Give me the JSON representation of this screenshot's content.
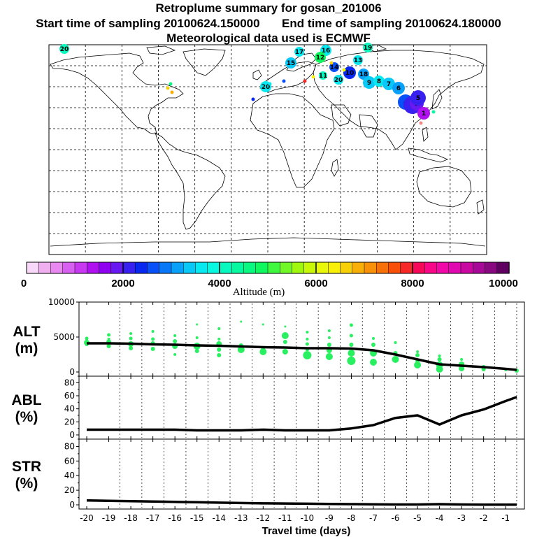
{
  "title": {
    "line1": "Retroplume summary for gosan_201006",
    "line2_start": "Start time of sampling 20100624.150000",
    "line2_end": "End time of sampling 20100624.180000",
    "line3": "Meteorological data used is ECMWF"
  },
  "colorbar": {
    "label": "Altitude (m)",
    "ticks": [
      "0",
      "2000",
      "4000",
      "6000",
      "8000",
      "10000"
    ],
    "colors": [
      "#f8d8f8",
      "#f0b0f0",
      "#e888f0",
      "#d860f0",
      "#c838f0",
      "#b010f0",
      "#9000f0",
      "#6818f0",
      "#3820f0",
      "#0828f0",
      "#0850f8",
      "#0878f8",
      "#08a0f8",
      "#08c8f8",
      "#08e8f0",
      "#08f8e0",
      "#08f8c0",
      "#08f8a0",
      "#08f880",
      "#10f860",
      "#40f840",
      "#70f828",
      "#a0f810",
      "#c8f808",
      "#e8f808",
      "#f8f008",
      "#f8d008",
      "#f8b008",
      "#f89008",
      "#f87008",
      "#f85008",
      "#f82828",
      "#f80858",
      "#f80888",
      "#f008a8",
      "#e008b0",
      "#c808a0",
      "#a80898",
      "#880880",
      "#600060"
    ]
  },
  "map": {
    "plume_labels": [
      "20",
      "17",
      "16",
      "19",
      "15",
      "12",
      "13",
      "14",
      "20",
      "11",
      "10",
      "20",
      "18",
      "9",
      "8",
      "7",
      "6",
      "4",
      "3",
      "2",
      "1",
      "5"
    ]
  },
  "chart_data": [
    {
      "type": "line",
      "panel": "ALT",
      "ylabel": "ALT (m)",
      "ylabel_lines": [
        "ALT",
        "(m)"
      ],
      "ylim": [
        0,
        10000
      ],
      "yticks": [
        "10000",
        "5000",
        "0"
      ],
      "x": [
        -20,
        -19,
        -18,
        -17,
        -16,
        -15,
        -14,
        -13,
        -12,
        -11,
        -10,
        -9,
        -8,
        -7,
        -6,
        -5,
        -4,
        -3,
        -2,
        -1,
        -0.5
      ],
      "series": [
        {
          "name": "mean altitude",
          "values": [
            4100,
            4100,
            4050,
            3950,
            3900,
            3800,
            3750,
            3650,
            3550,
            3500,
            3400,
            3400,
            3350,
            3100,
            2500,
            1800,
            1100,
            900,
            700,
            450,
            300
          ]
        }
      ],
      "plume_points": [
        [
          -20,
          4200,
          4
        ],
        [
          -20,
          4800,
          2.5
        ],
        [
          -20,
          4000,
          3
        ],
        [
          -19,
          3700,
          3
        ],
        [
          -19,
          4300,
          3.5
        ],
        [
          -19,
          5300,
          2.5
        ],
        [
          -19,
          4700,
          2
        ],
        [
          -18,
          3400,
          3
        ],
        [
          -18,
          4000,
          4
        ],
        [
          -18,
          4800,
          2.5
        ],
        [
          -18,
          5500,
          2
        ],
        [
          -17,
          3300,
          3
        ],
        [
          -17,
          4100,
          3
        ],
        [
          -17,
          4700,
          2.5
        ],
        [
          -17,
          5800,
          2
        ],
        [
          -16,
          2500,
          2
        ],
        [
          -16,
          3700,
          4
        ],
        [
          -16,
          4400,
          3
        ],
        [
          -16,
          5200,
          2
        ],
        [
          -15,
          3000,
          3
        ],
        [
          -15,
          3700,
          5
        ],
        [
          -15,
          4900,
          2
        ],
        [
          -15,
          6800,
          1.5
        ],
        [
          -14,
          2400,
          3
        ],
        [
          -14,
          3200,
          3
        ],
        [
          -14,
          4000,
          4
        ],
        [
          -14,
          4700,
          2
        ],
        [
          -14,
          6200,
          2
        ],
        [
          -13,
          3200,
          5
        ],
        [
          -13,
          3800,
          3
        ],
        [
          -13,
          7200,
          1.5
        ],
        [
          -12,
          2900,
          5
        ],
        [
          -12,
          3400,
          3
        ],
        [
          -12,
          6800,
          1.5
        ],
        [
          -11,
          2900,
          4
        ],
        [
          -11,
          4300,
          3
        ],
        [
          -11,
          5200,
          5
        ],
        [
          -11,
          6500,
          1.5
        ],
        [
          -10,
          2400,
          6
        ],
        [
          -10,
          3200,
          2.5
        ],
        [
          -10,
          4000,
          2.5
        ],
        [
          -10,
          4700,
          2
        ],
        [
          -10,
          5700,
          2
        ],
        [
          -9,
          2200,
          5
        ],
        [
          -9,
          3100,
          4
        ],
        [
          -9,
          3900,
          3
        ],
        [
          -9,
          4900,
          2
        ],
        [
          -9,
          5900,
          2
        ],
        [
          -8,
          1600,
          6
        ],
        [
          -8,
          2700,
          5
        ],
        [
          -8,
          3900,
          3
        ],
        [
          -8,
          5200,
          2.5
        ],
        [
          -8,
          6700,
          2.5
        ],
        [
          -7,
          1400,
          5
        ],
        [
          -7,
          2700,
          5
        ],
        [
          -7,
          3900,
          3
        ],
        [
          -7,
          4800,
          2
        ],
        [
          -6,
          1800,
          5
        ],
        [
          -6,
          2700,
          3
        ],
        [
          -6,
          4200,
          2
        ],
        [
          -5,
          1000,
          5
        ],
        [
          -5,
          1600,
          3
        ],
        [
          -5,
          2400,
          3
        ],
        [
          -5,
          2900,
          2
        ],
        [
          -4,
          400,
          5
        ],
        [
          -4,
          1000,
          5
        ],
        [
          -4,
          1800,
          3
        ],
        [
          -4,
          2300,
          2
        ],
        [
          -3,
          500,
          4
        ],
        [
          -3,
          1100,
          4
        ],
        [
          -3,
          1800,
          2
        ],
        [
          -2,
          400,
          3
        ],
        [
          -2,
          700,
          3
        ],
        [
          -1,
          300,
          2
        ],
        [
          -0.5,
          200,
          3
        ]
      ]
    },
    {
      "type": "line",
      "panel": "ABL",
      "ylabel": "ABL (%)",
      "ylabel_lines": [
        "ABL",
        "(%)"
      ],
      "ylim": [
        0,
        90
      ],
      "yticks": [
        "80",
        "60",
        "40",
        "20",
        "0"
      ],
      "x": [
        -20,
        -19,
        -18,
        -17,
        -16,
        -15,
        -14,
        -13,
        -12,
        -11,
        -10,
        -9,
        -8,
        -7,
        -6,
        -5,
        -4,
        -3,
        -2,
        -1,
        -0.5
      ],
      "series": [
        {
          "name": "ABL fraction",
          "values": [
            8,
            8,
            8,
            8,
            8,
            7,
            7,
            7,
            8,
            7,
            7,
            7,
            10,
            15,
            26,
            30,
            16,
            30,
            39,
            52,
            58
          ]
        }
      ]
    },
    {
      "type": "line",
      "panel": "STR",
      "ylabel": "STR (%)",
      "ylabel_lines": [
        "STR",
        "(%)"
      ],
      "ylim": [
        0,
        90
      ],
      "yticks": [
        "80",
        "60",
        "40",
        "20",
        "0"
      ],
      "x": [
        -20,
        -19,
        -18,
        -17,
        -16,
        -15,
        -14,
        -13,
        -12,
        -11,
        -10,
        -9,
        -8,
        -7,
        -6,
        -5,
        -4,
        -3,
        -2,
        -1,
        -0.5
      ],
      "series": [
        {
          "name": "STR fraction",
          "values": [
            6,
            5.5,
            5,
            4.5,
            4,
            3.5,
            3,
            2.5,
            2,
            1.8,
            1.5,
            1.2,
            1,
            0.8,
            0.5,
            0.5,
            1,
            0.5,
            0.3,
            0.2,
            0.2
          ]
        }
      ]
    }
  ],
  "xaxis": {
    "label": "Travel time (days)",
    "ticks": [
      "-20",
      "-19",
      "-18",
      "-17",
      "-16",
      "-15",
      "-14",
      "-13",
      "-12",
      "-11",
      "-10",
      "-9",
      "-8",
      "-7",
      "-6",
      "-5",
      "-4",
      "-3",
      "-2",
      "-1"
    ]
  }
}
